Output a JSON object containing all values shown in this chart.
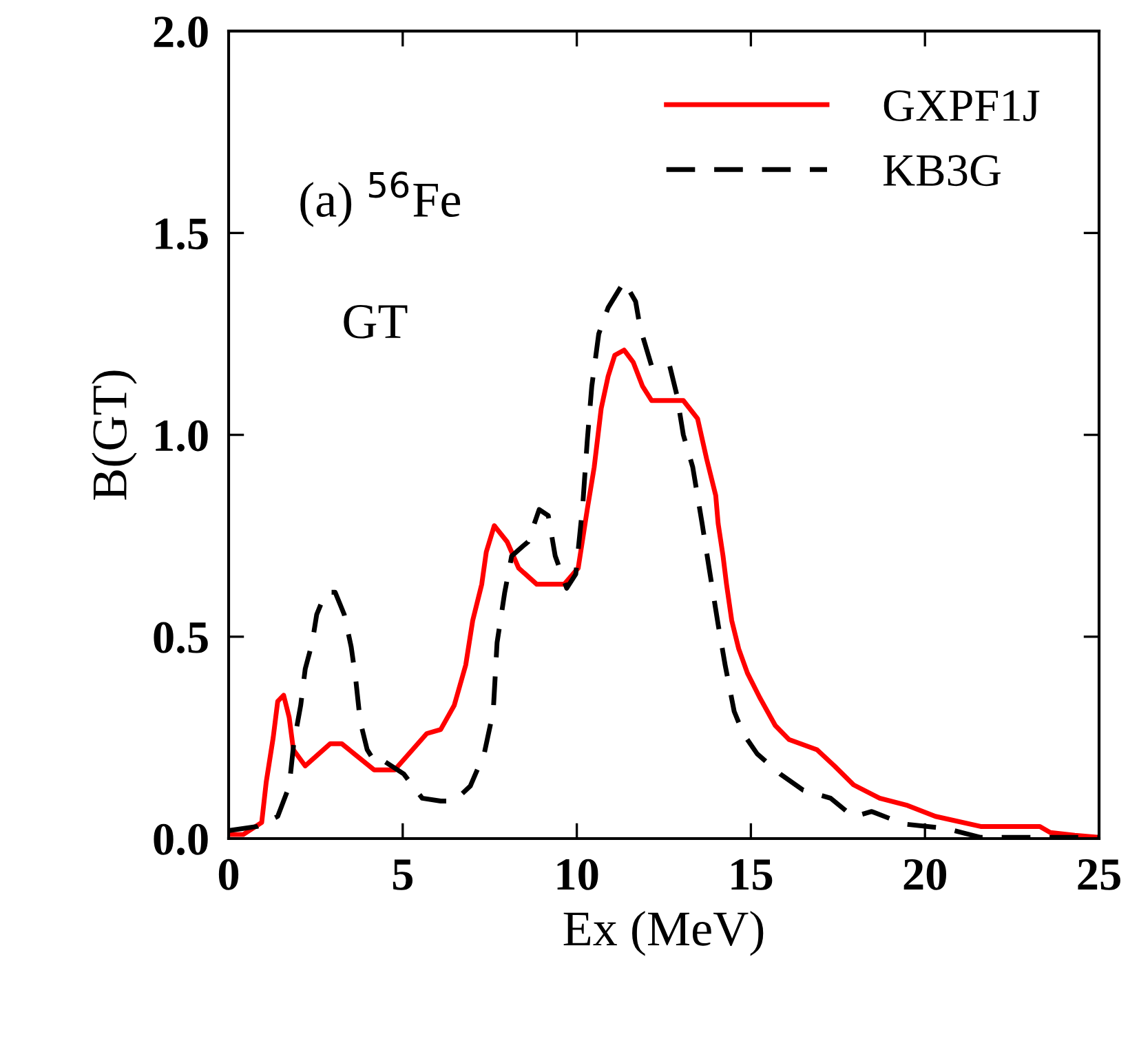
{
  "chart_data": {
    "type": "line",
    "xlabel": "Ex (MeV)",
    "ylabel": "B(GT)",
    "annotations": [
      {
        "text": "(a) $^{56}$Fe"
      },
      {
        "text": "GT"
      }
    ],
    "xlim": [
      0,
      25
    ],
    "ylim": [
      0,
      2.0
    ],
    "xticks": [
      0,
      5,
      10,
      15,
      20,
      25
    ],
    "yticks": [
      {
        "value": 0,
        "label": "0.0"
      },
      {
        "value": 0.5,
        "label": "0.5"
      },
      {
        "value": 1.0,
        "label": "1.0"
      },
      {
        "value": 1.5,
        "label": "1.5"
      },
      {
        "value": 2.0,
        "label": "2.0"
      }
    ],
    "legend": "top right",
    "grid": false,
    "series": [
      {
        "name": "GXPF1J",
        "color": "#ff0000",
        "line_style": "solid",
        "x": [
          0.03,
          0.42,
          0.95,
          1.08,
          1.28,
          1.41,
          1.58,
          1.74,
          1.86,
          2.2,
          2.92,
          3.25,
          4.18,
          4.77,
          5.69,
          6.09,
          6.48,
          6.81,
          7.01,
          7.27,
          7.4,
          7.63,
          8.0,
          8.33,
          8.85,
          9.64,
          10.04,
          10.3,
          10.5,
          10.7,
          10.9,
          11.09,
          11.36,
          11.62,
          11.89,
          12.15,
          13.06,
          13.47,
          13.73,
          13.99,
          14.06,
          14.2,
          14.3,
          14.45,
          14.65,
          14.9,
          15.25,
          15.7,
          16.1,
          16.9,
          17.4,
          17.95,
          18.7,
          19.5,
          20.3,
          21.6,
          23.3,
          23.6,
          24.3,
          25.0
        ],
        "values": [
          0.01,
          0.01,
          0.04,
          0.14,
          0.25,
          0.34,
          0.355,
          0.3,
          0.22,
          0.18,
          0.235,
          0.235,
          0.17,
          0.17,
          0.26,
          0.27,
          0.33,
          0.43,
          0.54,
          0.63,
          0.71,
          0.775,
          0.735,
          0.67,
          0.63,
          0.63,
          0.67,
          0.815,
          0.92,
          1.065,
          1.145,
          1.197,
          1.21,
          1.18,
          1.12,
          1.085,
          1.085,
          1.04,
          0.94,
          0.85,
          0.78,
          0.7,
          0.63,
          0.54,
          0.47,
          0.41,
          0.35,
          0.28,
          0.245,
          0.22,
          0.18,
          0.133,
          0.1,
          0.082,
          0.055,
          0.03,
          0.03,
          0.015,
          0.008,
          0.003
        ]
      },
      {
        "name": "KB3G",
        "color": "#000000",
        "line_style": "dashed",
        "x": [
          0.03,
          0.82,
          1.41,
          1.74,
          1.87,
          2.07,
          2.2,
          2.4,
          2.53,
          2.79,
          3.06,
          3.32,
          3.52,
          3.65,
          3.78,
          3.98,
          4.24,
          4.5,
          5.03,
          5.56,
          6.09,
          6.48,
          6.94,
          7.34,
          7.6,
          7.71,
          7.93,
          8.13,
          8.46,
          8.6,
          8.92,
          9.18,
          9.38,
          9.71,
          9.97,
          10.17,
          10.3,
          10.43,
          10.63,
          10.9,
          11.36,
          11.69,
          11.82,
          12.15,
          12.67,
          12.87,
          13.06,
          13.33,
          13.6,
          13.8,
          14.06,
          14.26,
          14.52,
          14.78,
          15.18,
          15.84,
          16.5,
          17.29,
          17.94,
          18.47,
          19.4,
          20.6,
          21.6,
          25.0
        ],
        "values": [
          0.02,
          0.03,
          0.055,
          0.13,
          0.235,
          0.33,
          0.42,
          0.485,
          0.555,
          0.61,
          0.61,
          0.555,
          0.475,
          0.395,
          0.29,
          0.22,
          0.185,
          0.19,
          0.16,
          0.1,
          0.093,
          0.093,
          0.13,
          0.21,
          0.315,
          0.485,
          0.61,
          0.7,
          0.725,
          0.735,
          0.815,
          0.8,
          0.7,
          0.62,
          0.655,
          0.825,
          0.985,
          1.12,
          1.25,
          1.315,
          1.38,
          1.33,
          1.265,
          1.17,
          1.17,
          1.1,
          1.0,
          0.92,
          0.78,
          0.67,
          0.53,
          0.43,
          0.315,
          0.26,
          0.21,
          0.16,
          0.12,
          0.1,
          0.054,
          0.067,
          0.036,
          0.025,
          0.003,
          0.003
        ]
      }
    ]
  }
}
